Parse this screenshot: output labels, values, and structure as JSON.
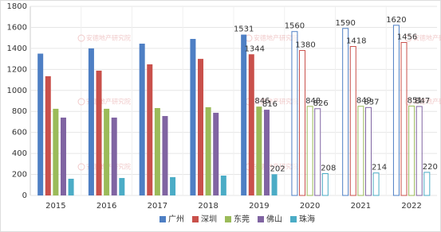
{
  "chart_data": {
    "type": "bar",
    "watermark": "安德地产研究院",
    "categories": [
      "2015",
      "2016",
      "2017",
      "2018",
      "2019",
      "2020",
      "2021",
      "2022"
    ],
    "bar_style": [
      "solid",
      "solid",
      "solid",
      "solid",
      "solid",
      "outline",
      "outline",
      "outline"
    ],
    "series": [
      {
        "name": "广州",
        "color": "#4e7fc4",
        "values": [
          1350,
          1400,
          1445,
          1490,
          1531,
          1560,
          1590,
          1620
        ],
        "value_labels": [
          null,
          null,
          null,
          null,
          "1531",
          "1560",
          "1590",
          "1620"
        ]
      },
      {
        "name": "深圳",
        "color": "#c9504b",
        "values": [
          1135,
          1188,
          1248,
          1300,
          1344,
          1380,
          1418,
          1456
        ],
        "value_labels": [
          null,
          null,
          null,
          null,
          "1344",
          "1380",
          "1418",
          "1456"
        ]
      },
      {
        "name": "东莞",
        "color": "#9bbb59",
        "values": [
          825,
          825,
          832,
          840,
          846,
          848,
          849,
          851
        ],
        "value_labels": [
          null,
          null,
          null,
          null,
          "846",
          "848",
          "849",
          "851"
        ]
      },
      {
        "name": "佛山",
        "color": "#8064a2",
        "values": [
          741,
          741,
          756,
          787,
          816,
          826,
          837,
          847
        ],
        "value_labels": [
          null,
          null,
          null,
          null,
          "816",
          "826",
          "837",
          "847"
        ]
      },
      {
        "name": "珠海",
        "color": "#4bacc6",
        "values": [
          159,
          166,
          174,
          189,
          202,
          208,
          214,
          220
        ],
        "value_labels": [
          null,
          null,
          null,
          null,
          "202",
          "208",
          "214",
          "220"
        ]
      }
    ],
    "ylim": [
      0,
      1800
    ],
    "yticks": [
      0,
      200,
      400,
      600,
      800,
      1000,
      1200,
      1400,
      1600,
      1800
    ],
    "grid": true,
    "legend": "bottom"
  }
}
